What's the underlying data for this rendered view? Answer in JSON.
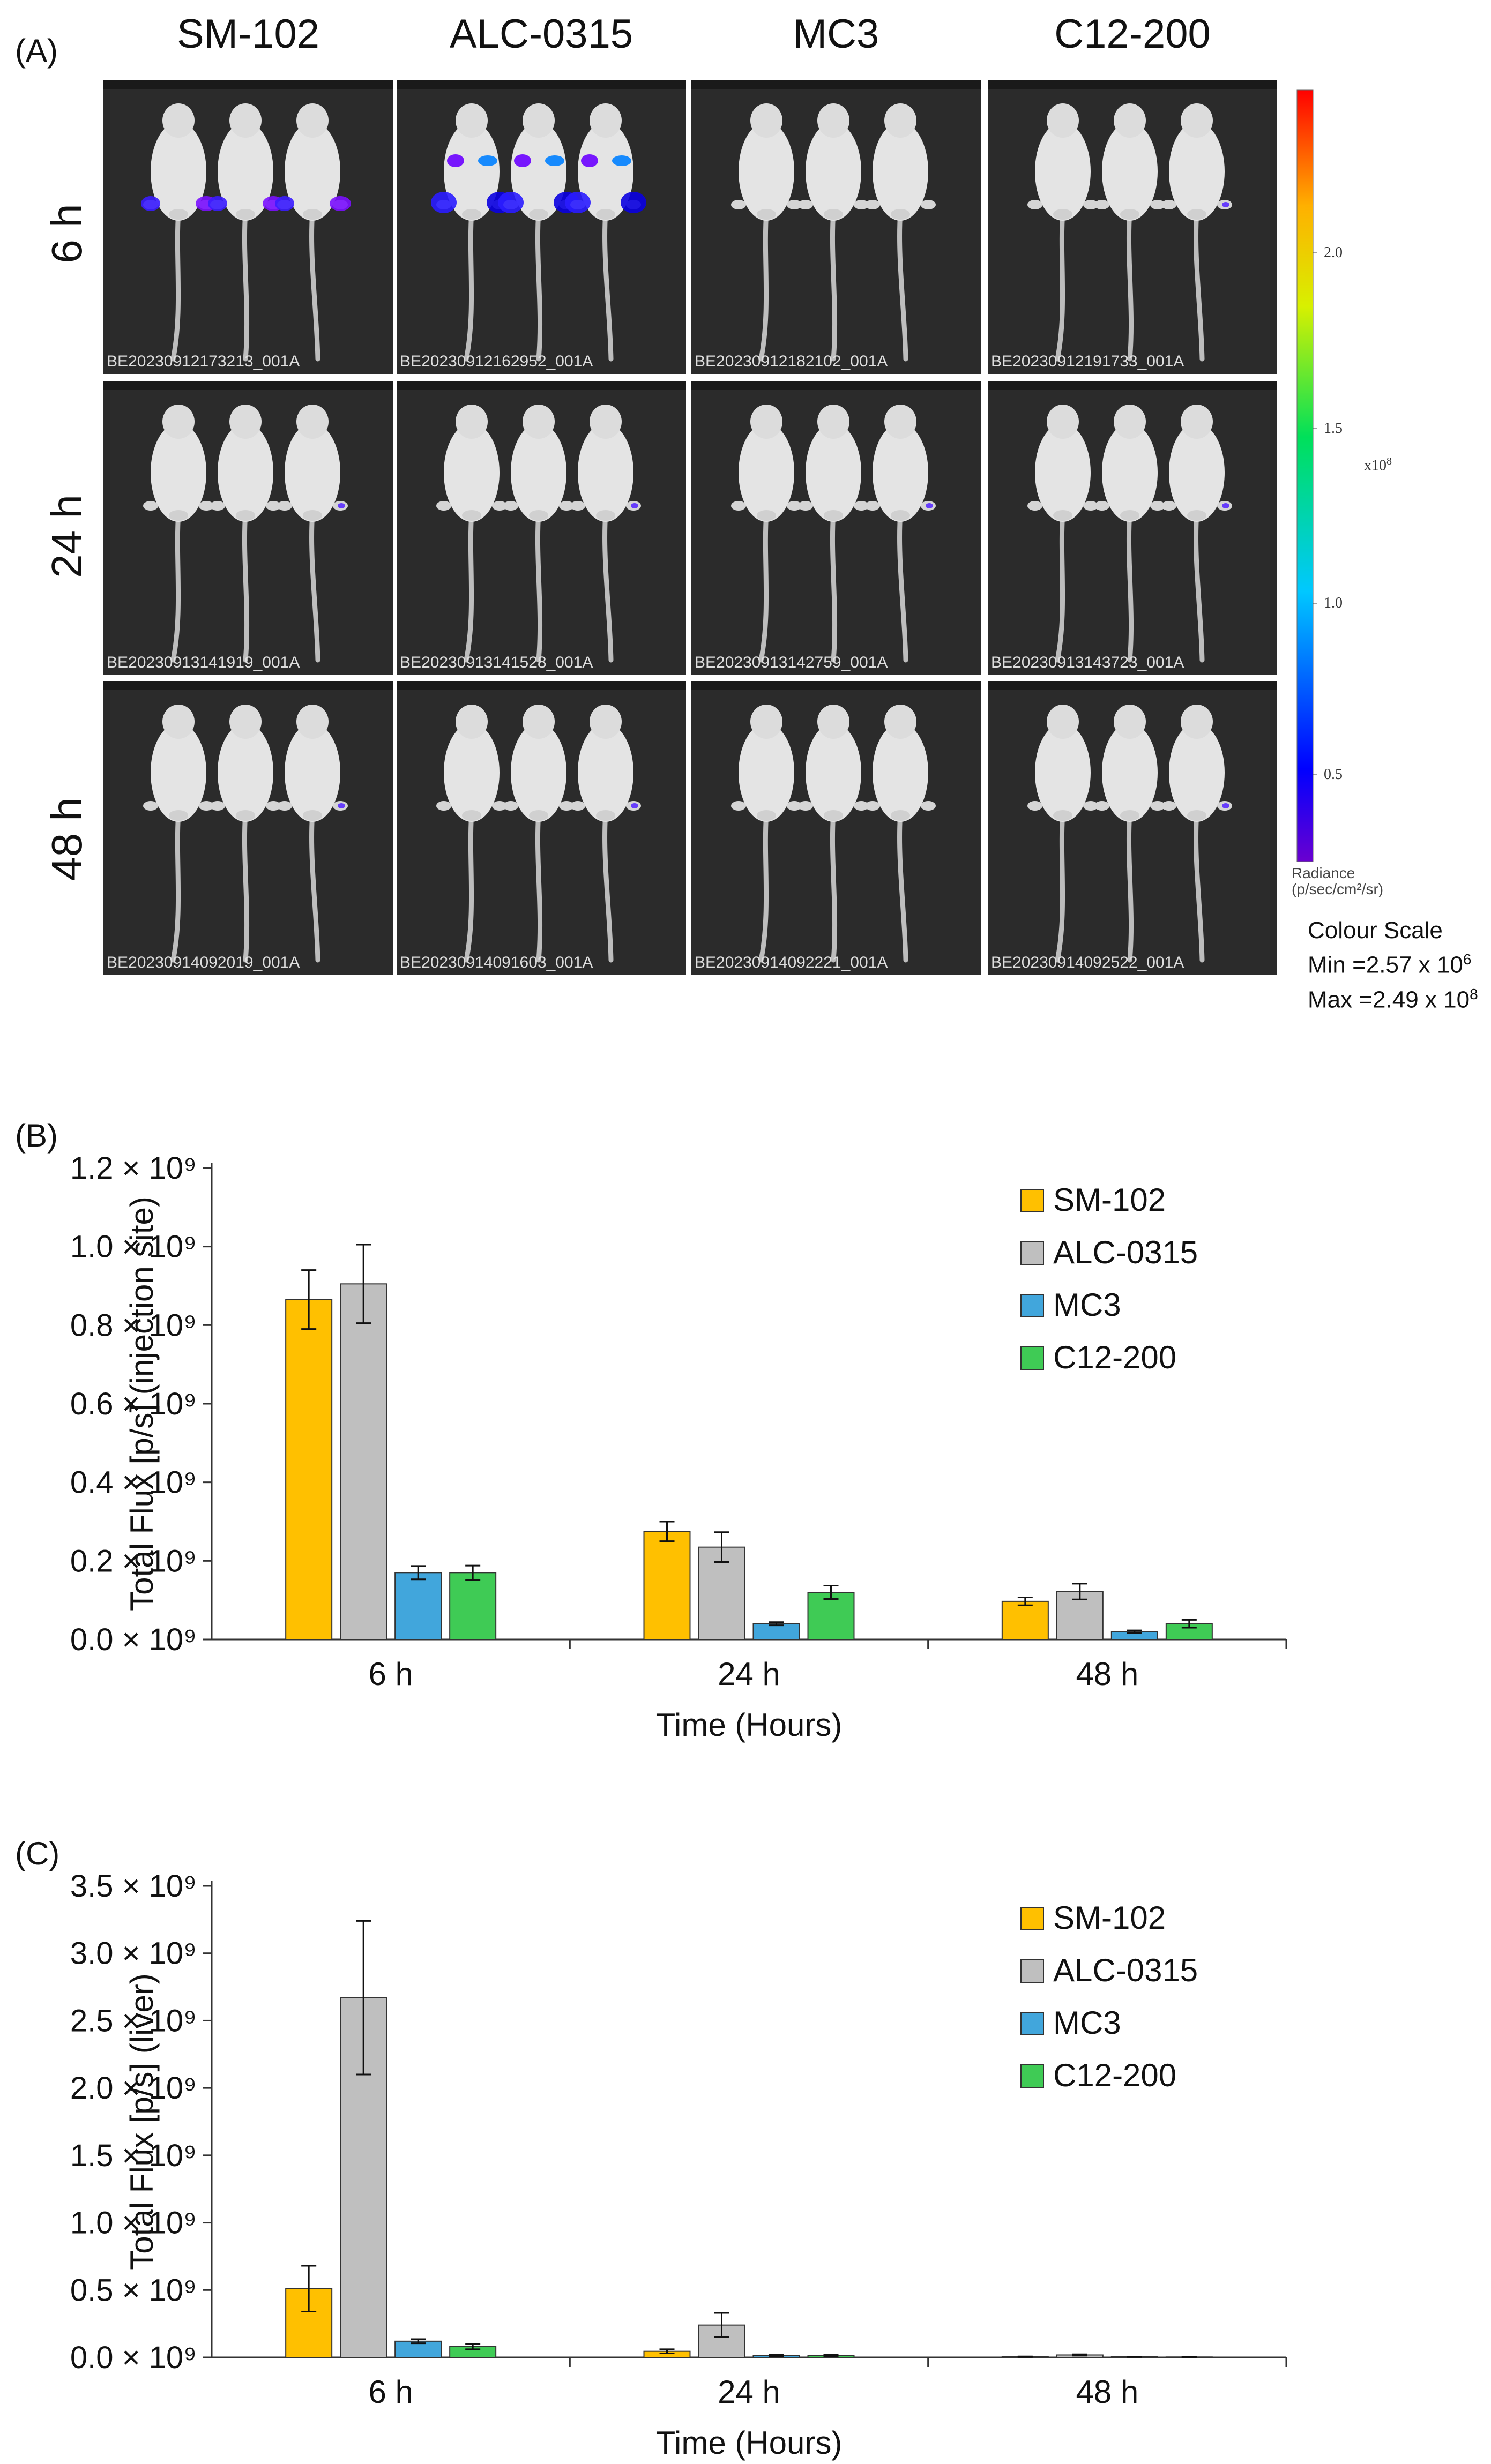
{
  "panelA": {
    "label": "(A)",
    "columns": [
      "SM-102",
      "ALC-0315",
      "MC3",
      "C12-200"
    ],
    "rows": [
      "6 h",
      "24 h",
      "48 h"
    ],
    "tiles": [
      [
        "BE20230912173213_001A",
        "BE20230912162952_001A",
        "BE20230912182102_001A",
        "BE20230912191733_001A"
      ],
      [
        "BE20230913141919_001A",
        "BE20230913141528_001A",
        "BE20230913142759_001A",
        "BE20230913143723_001A"
      ],
      [
        "BE20230914092019_001A",
        "BE20230914091603_001A",
        "BE20230914092221_001A",
        "BE20230914092522_001A"
      ]
    ],
    "signal": [
      [
        "medium",
        "strong",
        "none",
        "trace"
      ],
      [
        "trace",
        "trace",
        "trace",
        "trace"
      ],
      [
        "trace",
        "trace",
        "none",
        "trace"
      ]
    ],
    "colorbar": {
      "ticks": [
        "2.0",
        "1.5",
        "1.0",
        "0.5"
      ],
      "multiplier": "x10",
      "multiplier_exp": "8",
      "radiance_line1": "Radiance",
      "radiance_line2": "(p/sec/cm²/sr)",
      "scale_title": "Colour Scale",
      "min_text": "Min =2.57 x 10",
      "min_exp": "6",
      "max_text": "Max =2.49 x 10",
      "max_exp": "8"
    }
  },
  "legend": [
    "SM-102",
    "ALC-0315",
    "MC3",
    "C12-200"
  ],
  "colors": {
    "SM-102": "#FFC000",
    "ALC-0315": "#BFBFBF",
    "MC3": "#41A6DC",
    "C12-200": "#3FCB55"
  },
  "chart_data": [
    {
      "type": "bar",
      "panel_label": "(B)",
      "categories": [
        "6 h",
        "24 h",
        "48 h"
      ],
      "series": [
        {
          "name": "SM-102",
          "values": [
            0.865,
            0.275,
            0.097
          ],
          "errors": [
            0.075,
            0.025,
            0.01
          ]
        },
        {
          "name": "ALC-0315",
          "values": [
            0.905,
            0.235,
            0.122
          ],
          "errors": [
            0.1,
            0.038,
            0.02
          ]
        },
        {
          "name": "MC3",
          "values": [
            0.17,
            0.04,
            0.02
          ],
          "errors": [
            0.017,
            0.004,
            0.003
          ]
        },
        {
          "name": "C12-200",
          "values": [
            0.17,
            0.12,
            0.04
          ],
          "errors": [
            0.018,
            0.017,
            0.01
          ]
        }
      ],
      "xlabel": "Time (Hours)",
      "ylabel": "Total Flux [p/s] (injection site)",
      "ylim": [
        0,
        1.2
      ],
      "yticks": [
        "1.2 × 10⁹",
        "1.0 × 10⁹",
        "0.8 × 10⁹",
        "0.6 × 10⁹",
        "0.4 × 10⁹",
        "0.2 × 10⁹",
        "0.0 × 10⁹"
      ],
      "yunit": "× 10⁹ p/s"
    },
    {
      "type": "bar",
      "panel_label": "(C)",
      "categories": [
        "6 h",
        "24 h",
        "48 h"
      ],
      "series": [
        {
          "name": "SM-102",
          "values": [
            0.51,
            0.045,
            0.005
          ],
          "errors": [
            0.17,
            0.015,
            0.002
          ]
        },
        {
          "name": "ALC-0315",
          "values": [
            2.67,
            0.24,
            0.018
          ],
          "errors": [
            0.57,
            0.09,
            0.005
          ]
        },
        {
          "name": "MC3",
          "values": [
            0.12,
            0.015,
            0.004
          ],
          "errors": [
            0.015,
            0.005,
            0.001
          ]
        },
        {
          "name": "C12-200",
          "values": [
            0.08,
            0.013,
            0.003
          ],
          "errors": [
            0.02,
            0.005,
            0.001
          ]
        }
      ],
      "xlabel": "Time (Hours)",
      "ylabel": "Total Flux [p/s] (liver)",
      "ylim": [
        0,
        3.5
      ],
      "yticks": [
        "3.5 × 10⁹",
        "3.0 × 10⁹",
        "2.5 × 10⁹",
        "2.0 × 10⁹",
        "1.5 × 10⁹",
        "1.0 × 10⁹",
        "0.5 × 10⁹",
        "0.0 × 10⁹"
      ],
      "yunit": "× 10⁹ p/s"
    }
  ]
}
